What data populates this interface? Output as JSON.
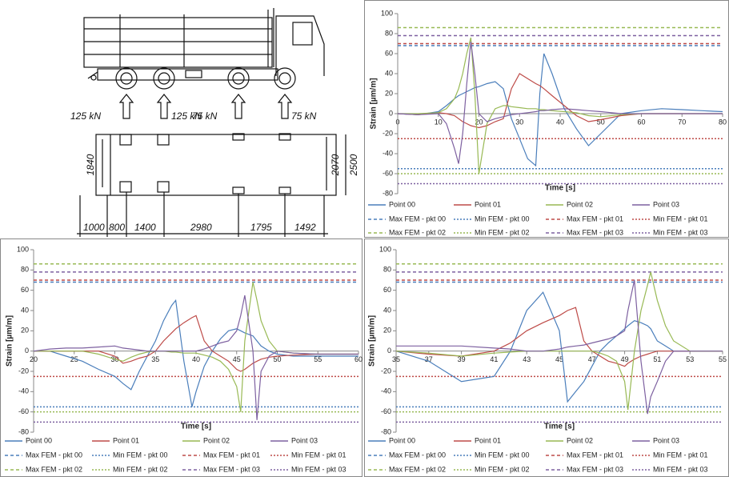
{
  "diagram": {
    "loads": [
      "125  kN",
      "125  kN",
      "75  kN",
      "75  kN"
    ],
    "dims_vertical": [
      "1840",
      "2070",
      "2500"
    ],
    "dims_horizontal": [
      "1000",
      "800",
      "1400",
      "2980",
      "1795",
      "1492"
    ]
  },
  "chart_data": [
    {
      "type": "line",
      "xlabel": "Time [s]",
      "ylabel": "Strain [µm/m]",
      "xlim": [
        0,
        80
      ],
      "xticks": [
        0,
        10,
        20,
        30,
        40,
        50,
        60,
        70,
        80
      ],
      "ylim": [
        -80,
        100
      ],
      "yticks": [
        -80,
        -60,
        -40,
        -20,
        0,
        20,
        40,
        60,
        80,
        100
      ],
      "x": [
        0,
        5,
        10,
        12,
        14,
        15,
        16,
        17,
        18,
        19,
        20,
        22,
        24,
        26,
        27,
        28,
        30,
        32,
        34,
        35,
        36,
        38,
        41,
        44,
        47,
        50,
        55,
        60,
        65,
        70,
        75,
        80
      ],
      "series": [
        {
          "name": "Point 00",
          "color": "#4a7ebb",
          "values": [
            0,
            -1,
            2,
            8,
            15,
            18,
            20,
            22,
            24,
            26,
            27,
            30,
            32,
            25,
            10,
            -5,
            -25,
            -45,
            -52,
            20,
            60,
            40,
            5,
            -15,
            -32,
            -20,
            0,
            3,
            5,
            4,
            3,
            2
          ]
        },
        {
          "name": "Point 01",
          "color": "#be4b48",
          "values": [
            0,
            -1,
            1,
            0,
            -2,
            -5,
            -8,
            -10,
            -12,
            -13,
            -14,
            -12,
            -8,
            -5,
            10,
            25,
            40,
            35,
            30,
            28,
            25,
            18,
            8,
            -2,
            -8,
            -6,
            -2,
            0,
            0,
            0,
            0,
            0
          ]
        },
        {
          "name": "Point 02",
          "color": "#98b954",
          "values": [
            0,
            0,
            1,
            5,
            15,
            25,
            40,
            60,
            76,
            20,
            -60,
            -10,
            5,
            8,
            8,
            7,
            6,
            5,
            5,
            4,
            4,
            3,
            2,
            1,
            -2,
            -3,
            -1,
            0,
            0,
            0,
            0,
            0
          ]
        },
        {
          "name": "Point 03",
          "color": "#7d60a0",
          "values": [
            0,
            -1,
            0,
            -10,
            -35,
            -50,
            -20,
            30,
            72,
            40,
            0,
            -8,
            -5,
            -3,
            -2,
            -1,
            0,
            1,
            2,
            3,
            3,
            4,
            5,
            4,
            3,
            2,
            0,
            0,
            0,
            0,
            0,
            0
          ]
        }
      ],
      "limits": [
        {
          "name": "Max FEM - pkt 00",
          "color": "#4a7ebb",
          "dash": "dashed",
          "value": 68
        },
        {
          "name": "Min FEM - pkt 00",
          "color": "#4a7ebb",
          "dash": "dotted",
          "value": -55
        },
        {
          "name": "Max FEM - pkt 01",
          "color": "#be4b48",
          "dash": "dashed",
          "value": 70
        },
        {
          "name": "Min FEM - pkt 01",
          "color": "#be4b48",
          "dash": "dotted",
          "value": -25
        },
        {
          "name": "Max FEM - pkt 02",
          "color": "#98b954",
          "dash": "dashed",
          "value": 86
        },
        {
          "name": "Min FEM - pkt 02",
          "color": "#98b954",
          "dash": "dotted",
          "value": -60
        },
        {
          "name": "Max FEM - pkt 03",
          "color": "#7d60a0",
          "dash": "dashed",
          "value": 78
        },
        {
          "name": "Min FEM - pkt 03",
          "color": "#7d60a0",
          "dash": "dotted",
          "value": -70
        }
      ]
    },
    {
      "type": "line",
      "xlabel": "Time [s]",
      "ylabel": "Strain [µm/m]",
      "xlim": [
        20,
        60
      ],
      "xticks": [
        20,
        25,
        30,
        35,
        40,
        45,
        50,
        55,
        60
      ],
      "ylim": [
        -80,
        100
      ],
      "yticks": [
        -80,
        -60,
        -40,
        -20,
        0,
        20,
        40,
        60,
        80,
        100
      ],
      "x": [
        20,
        22,
        24,
        26,
        28,
        30,
        31,
        32,
        33,
        34,
        35,
        36,
        37,
        37.5,
        38.5,
        39.5,
        40,
        41,
        42,
        43,
        44,
        45,
        45.5,
        46,
        47,
        47.5,
        48,
        49,
        50,
        52,
        55,
        60
      ],
      "series": [
        {
          "name": "Point 00",
          "color": "#4a7ebb",
          "values": [
            0,
            0,
            -5,
            -10,
            -18,
            -25,
            -32,
            -38,
            -20,
            -5,
            10,
            30,
            45,
            50,
            -10,
            -55,
            -40,
            -15,
            0,
            12,
            20,
            22,
            20,
            18,
            15,
            10,
            5,
            0,
            -3,
            -5,
            -5,
            -5
          ]
        },
        {
          "name": "Point 01",
          "color": "#be4b48",
          "values": [
            0,
            0,
            0,
            0,
            0,
            -5,
            -12,
            -10,
            -7,
            -5,
            0,
            10,
            18,
            22,
            28,
            33,
            35,
            10,
            0,
            -5,
            -10,
            -18,
            -20,
            -18,
            -12,
            -10,
            -8,
            -6,
            -5,
            -4,
            -3,
            -3
          ]
        },
        {
          "name": "Point 02",
          "color": "#98b954",
          "values": [
            0,
            0,
            0,
            0,
            -3,
            -8,
            -10,
            -6,
            -3,
            -1,
            0,
            0,
            -1,
            -1,
            -2,
            -2,
            -2,
            -4,
            -6,
            -10,
            -18,
            -35,
            -60,
            10,
            68,
            50,
            30,
            10,
            0,
            -2,
            -3,
            -3
          ]
        },
        {
          "name": "Point 03",
          "color": "#7d60a0",
          "values": [
            0,
            2,
            3,
            3,
            4,
            5,
            3,
            2,
            1,
            0,
            0,
            0,
            0,
            0,
            0,
            0,
            0,
            2,
            5,
            8,
            10,
            20,
            35,
            55,
            0,
            -68,
            -20,
            -5,
            0,
            -2,
            -3,
            -3
          ]
        }
      ],
      "limits": [
        {
          "name": "Max FEM - pkt 00",
          "color": "#4a7ebb",
          "dash": "dashed",
          "value": 68
        },
        {
          "name": "Min FEM - pkt 00",
          "color": "#4a7ebb",
          "dash": "dotted",
          "value": -55
        },
        {
          "name": "Max FEM - pkt 01",
          "color": "#be4b48",
          "dash": "dashed",
          "value": 70
        },
        {
          "name": "Min FEM - pkt 01",
          "color": "#be4b48",
          "dash": "dotted",
          "value": -25
        },
        {
          "name": "Max FEM - pkt 02",
          "color": "#98b954",
          "dash": "dashed",
          "value": 86
        },
        {
          "name": "Min FEM - pkt 02",
          "color": "#98b954",
          "dash": "dotted",
          "value": -60
        },
        {
          "name": "Max FEM - pkt 03",
          "color": "#7d60a0",
          "dash": "dashed",
          "value": 78
        },
        {
          "name": "Min FEM - pkt 03",
          "color": "#7d60a0",
          "dash": "dotted",
          "value": -70
        }
      ]
    },
    {
      "type": "line",
      "xlabel": "Time [s]",
      "ylabel": "Strain [µm/m]",
      "xlim": [
        35,
        55
      ],
      "xticks": [
        35,
        37,
        39,
        41,
        43,
        45,
        47,
        49,
        51,
        53,
        55
      ],
      "ylim": [
        -80,
        100
      ],
      "yticks": [
        -80,
        -60,
        -40,
        -20,
        0,
        20,
        40,
        60,
        80,
        100
      ],
      "x": [
        35,
        37,
        39,
        41,
        42,
        43,
        44,
        45,
        45.5,
        46,
        46.5,
        47,
        47.5,
        48,
        48.5,
        49,
        49.2,
        49.6,
        50,
        50.4,
        50.6,
        51,
        51.5,
        52,
        53,
        54,
        55
      ],
      "series": [
        {
          "name": "Point 00",
          "color": "#4a7ebb",
          "values": [
            0,
            -10,
            -30,
            -25,
            0,
            40,
            58,
            20,
            -50,
            -40,
            -30,
            -15,
            0,
            8,
            15,
            22,
            25,
            30,
            28,
            25,
            22,
            10,
            5,
            0,
            0,
            0,
            0
          ]
        },
        {
          "name": "Point 01",
          "color": "#be4b48",
          "values": [
            0,
            -3,
            -5,
            0,
            8,
            20,
            28,
            35,
            40,
            43,
            10,
            0,
            -5,
            -10,
            -12,
            -15,
            -12,
            -8,
            -5,
            -3,
            -2,
            0,
            0,
            0,
            0,
            0,
            0
          ]
        },
        {
          "name": "Point 02",
          "color": "#98b954",
          "values": [
            0,
            -2,
            -5,
            -2,
            -1,
            0,
            0,
            0,
            0,
            0,
            0,
            0,
            -2,
            -5,
            -10,
            -30,
            -58,
            0,
            40,
            65,
            78,
            50,
            25,
            10,
            0,
            0,
            0
          ]
        },
        {
          "name": "Point 03",
          "color": "#7d60a0",
          "values": [
            5,
            5,
            5,
            3,
            2,
            0,
            0,
            2,
            4,
            5,
            6,
            8,
            10,
            12,
            15,
            20,
            40,
            70,
            -10,
            -62,
            -45,
            -30,
            -10,
            0,
            0,
            0,
            0
          ]
        }
      ],
      "limits": [
        {
          "name": "Max FEM - pkt 00",
          "color": "#4a7ebb",
          "dash": "dashed",
          "value": 68
        },
        {
          "name": "Min FEM - pkt 00",
          "color": "#4a7ebb",
          "dash": "dotted",
          "value": -55
        },
        {
          "name": "Max FEM - pkt 01",
          "color": "#be4b48",
          "dash": "dashed",
          "value": 70
        },
        {
          "name": "Min FEM - pkt 01",
          "color": "#be4b48",
          "dash": "dotted",
          "value": -25
        },
        {
          "name": "Max FEM - pkt 02",
          "color": "#98b954",
          "dash": "dashed",
          "value": 86
        },
        {
          "name": "Min FEM - pkt 02",
          "color": "#98b954",
          "dash": "dotted",
          "value": -60
        },
        {
          "name": "Max FEM - pkt 03",
          "color": "#7d60a0",
          "dash": "dashed",
          "value": 78
        },
        {
          "name": "Min FEM - pkt 03",
          "color": "#7d60a0",
          "dash": "dotted",
          "value": -70
        }
      ]
    }
  ]
}
